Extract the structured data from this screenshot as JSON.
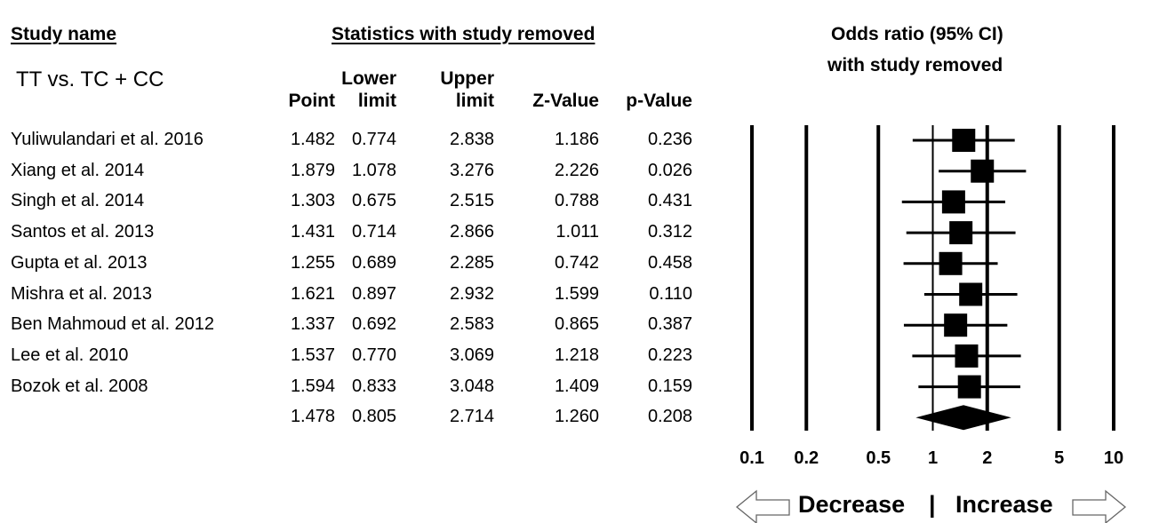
{
  "headers": {
    "study_name": "Study name",
    "stats_group": "Statistics with study removed",
    "or_title_1": "Odds ratio (95% CI)",
    "or_title_2": "with study removed",
    "subgroup": "TT vs. TC + CC",
    "columns": [
      {
        "line1": "",
        "line2": "Point"
      },
      {
        "line1": "Lower",
        "line2": "limit"
      },
      {
        "line1": "Upper",
        "line2": "limit"
      },
      {
        "line1": "",
        "line2": "Z-Value"
      },
      {
        "line1": "",
        "line2": "p-Value"
      }
    ]
  },
  "rows": [
    {
      "name": "Yuliwulandari et al. 2016",
      "point": "1.482",
      "lower": "0.774",
      "upper": "2.838",
      "z": "1.186",
      "p": "0.236"
    },
    {
      "name": "Xiang et al. 2014",
      "point": "1.879",
      "lower": "1.078",
      "upper": "3.276",
      "z": "2.226",
      "p": "0.026"
    },
    {
      "name": "Singh et al. 2014",
      "point": "1.303",
      "lower": "0.675",
      "upper": "2.515",
      "z": "0.788",
      "p": "0.431"
    },
    {
      "name": "Santos et al. 2013",
      "point": "1.431",
      "lower": "0.714",
      "upper": "2.866",
      "z": "1.011",
      "p": "0.312"
    },
    {
      "name": "Gupta et al. 2013",
      "point": "1.255",
      "lower": "0.689",
      "upper": "2.285",
      "z": "0.742",
      "p": "0.458"
    },
    {
      "name": "Mishra et al. 2013",
      "point": "1.621",
      "lower": "0.897",
      "upper": "2.932",
      "z": "1.599",
      "p": "0.110"
    },
    {
      "name": "Ben Mahmoud et al. 2012",
      "point": "1.337",
      "lower": "0.692",
      "upper": "2.583",
      "z": "0.865",
      "p": "0.387"
    },
    {
      "name": "Lee et al. 2010",
      "point": "1.537",
      "lower": "0.770",
      "upper": "3.069",
      "z": "1.218",
      "p": "0.223"
    },
    {
      "name": "Bozok et al. 2008",
      "point": "1.594",
      "lower": "0.833",
      "upper": "3.048",
      "z": "1.409",
      "p": "0.159"
    },
    {
      "name": "",
      "point": "1.478",
      "lower": "0.805",
      "upper": "2.714",
      "z": "1.260",
      "p": "0.208"
    }
  ],
  "chart_data": {
    "type": "forest",
    "x_scale": "log",
    "xlim": [
      0.1,
      10
    ],
    "ticks": [
      0.1,
      0.2,
      0.5,
      1,
      2,
      5,
      10
    ],
    "tick_labels": [
      "0.1",
      "0.2",
      "0.5",
      "1",
      "2",
      "5",
      "10"
    ],
    "studies": [
      {
        "name": "Yuliwulandari et al. 2016",
        "or": 1.482,
        "lower": 0.774,
        "upper": 2.838
      },
      {
        "name": "Xiang et al. 2014",
        "or": 1.879,
        "lower": 1.078,
        "upper": 3.276
      },
      {
        "name": "Singh et al. 2014",
        "or": 1.303,
        "lower": 0.675,
        "upper": 2.515
      },
      {
        "name": "Santos et al. 2013",
        "or": 1.431,
        "lower": 0.714,
        "upper": 2.866
      },
      {
        "name": "Gupta et al. 2013",
        "or": 1.255,
        "lower": 0.689,
        "upper": 2.285
      },
      {
        "name": "Mishra et al. 2013",
        "or": 1.621,
        "lower": 0.897,
        "upper": 2.932
      },
      {
        "name": "Ben Mahmoud et al. 2012",
        "or": 1.337,
        "lower": 0.692,
        "upper": 2.583
      },
      {
        "name": "Lee et al. 2010",
        "or": 1.537,
        "lower": 0.77,
        "upper": 3.069
      },
      {
        "name": "Bozok et al. 2008",
        "or": 1.594,
        "lower": 0.833,
        "upper": 3.048
      }
    ],
    "summary": {
      "or": 1.478,
      "lower": 0.805,
      "upper": 2.714
    },
    "direction_left": "Decrease",
    "direction_separator": "|",
    "direction_right": "Increase"
  }
}
